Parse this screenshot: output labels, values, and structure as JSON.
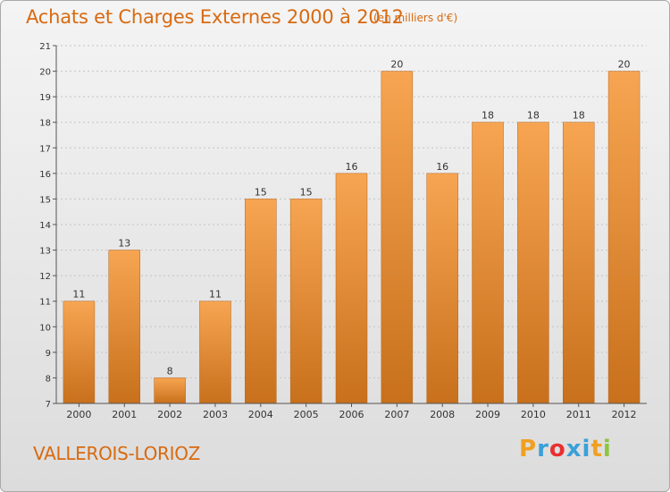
{
  "title": "Achats et Charges Externes 2000 à 2012",
  "subtitle": "(en milliers d'€)",
  "town": "VALLEROIS-LORIOZ",
  "logo": {
    "text": "Proxiti",
    "letters": [
      "P",
      "r",
      "o",
      "x",
      "i",
      "t",
      "i"
    ],
    "colors": [
      "#f0a020",
      "#3aa0d8",
      "#e83030",
      "#3aa0d8",
      "#3aa0d8",
      "#f0a020",
      "#8cc63e"
    ]
  },
  "colors": {
    "bar_light": "#f7a552",
    "bar_dark": "#c8701c",
    "title": "#d86a10"
  },
  "chart_data": {
    "type": "bar",
    "categories": [
      "2000",
      "2001",
      "2002",
      "2003",
      "2004",
      "2005",
      "2006",
      "2007",
      "2008",
      "2009",
      "2010",
      "2011",
      "2012"
    ],
    "values": [
      11,
      13,
      8,
      11,
      15,
      15,
      16,
      20,
      16,
      18,
      18,
      18,
      20
    ],
    "data_labels": [
      "11",
      "13",
      "8",
      "11",
      "15",
      "15",
      "16",
      "20",
      "16",
      "18",
      "18",
      "18",
      "20"
    ],
    "title": "Achats et Charges Externes 2000 à 2012",
    "xlabel": "",
    "ylabel": "",
    "ylim": [
      7,
      21
    ],
    "yticks": [
      "7",
      "8",
      "9",
      "10",
      "11",
      "12",
      "13",
      "14",
      "15",
      "16",
      "17",
      "18",
      "19",
      "20",
      "21"
    ],
    "grid": true
  }
}
